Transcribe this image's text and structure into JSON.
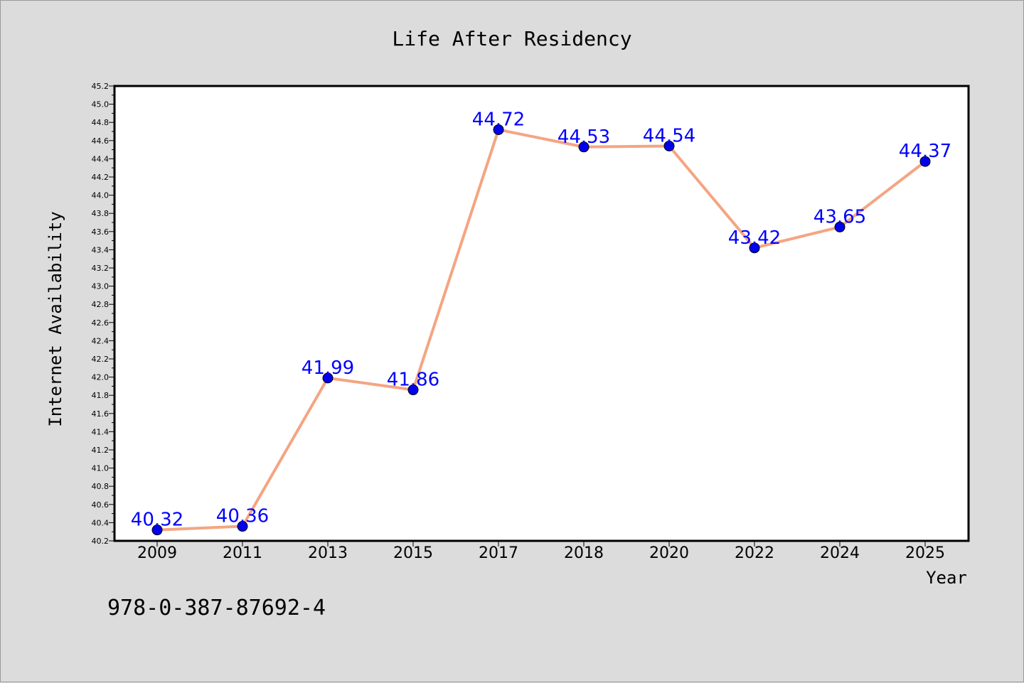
{
  "chart_data": {
    "type": "line",
    "title": "Life After Residency",
    "xlabel": "Year",
    "ylabel": "Internet Availability",
    "categories": [
      "2009",
      "2011",
      "2013",
      "2015",
      "2017",
      "2018",
      "2020",
      "2022",
      "2024",
      "2025"
    ],
    "series": [
      {
        "values": [
          40.32,
          40.36,
          41.99,
          41.86,
          44.72,
          44.53,
          44.54,
          43.42,
          43.65,
          44.37
        ],
        "labels": [
          "40.32",
          "40.36",
          "41.99",
          "41.86",
          "44.72",
          "44.53",
          "44.54",
          "43.42",
          "43.65",
          "44.37"
        ],
        "line_color": "#f4a582",
        "marker_color": "#0000ee",
        "label_color": "#0000ff"
      }
    ],
    "ylim": [
      40.2,
      45.2
    ],
    "yticks": [
      "40.2",
      "40.4",
      "40.6",
      "40.8",
      "41.0",
      "41.2",
      "41.4",
      "41.6",
      "41.8",
      "42.0",
      "42.2",
      "42.4",
      "42.6",
      "42.8",
      "43.0",
      "43.2",
      "43.4",
      "43.6",
      "43.8",
      "44.0",
      "44.2",
      "44.4",
      "44.6",
      "44.8",
      "45.0",
      "45.2"
    ],
    "grid": false,
    "legend": "none"
  },
  "footer": {
    "isbn": "978-0-387-87692-4"
  }
}
